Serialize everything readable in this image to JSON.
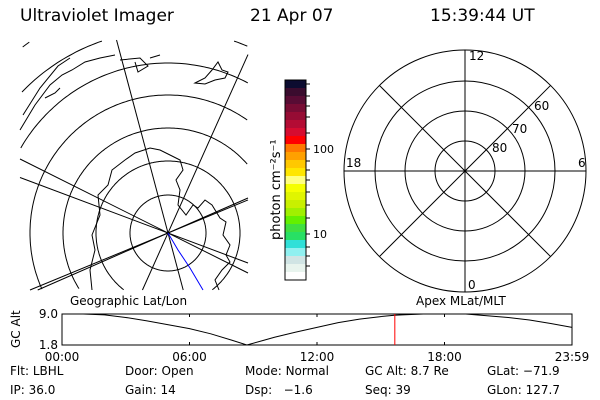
{
  "header": {
    "instrument": "Ultraviolet Imager",
    "date": "21 Apr 07",
    "time": "15:39:44 UT"
  },
  "colorbar": {
    "label": "photon cm⁻²s⁻¹",
    "ticks": [
      "100",
      "10"
    ],
    "colors": [
      "#0c0c30",
      "#3a0c2e",
      "#580c34",
      "#780c34",
      "#960c34",
      "#b40c34",
      "#d60c30",
      "#ff0000",
      "#ff7800",
      "#ffa000",
      "#ffc800",
      "#ffe600",
      "#ffff80",
      "#f5ff00",
      "#e0f500",
      "#c8f000",
      "#a0f000",
      "#64f000",
      "#40e040",
      "#28e064",
      "#30e0d8",
      "#90f0f0",
      "#d0e4e4",
      "#e8f4ee",
      "#ffffff"
    ]
  },
  "polar": {
    "mlt_labels": [
      "12",
      "6",
      "0",
      "18"
    ],
    "lat_labels": [
      "80",
      "70",
      "60"
    ]
  },
  "map_colors": {
    "grid": "#000000",
    "track": "#0000ff",
    "marker": "#ff0000"
  },
  "panel_labels": {
    "left": "Geographic Lat/Lon",
    "right": "Apex MLat/MLT"
  },
  "chart_data": {
    "type": "line",
    "ylabel": "GC Alt",
    "ytick_labels": [
      "9.0",
      "1.8"
    ],
    "ylim": [
      1.8,
      9.0
    ],
    "xtick_labels": [
      "00:00",
      "06:00",
      "12:00",
      "18:00",
      "23:59"
    ],
    "xlim": [
      0,
      24
    ],
    "x": [
      0,
      1,
      2,
      3,
      4,
      5,
      6,
      7,
      8,
      8.7,
      9.5,
      10,
      11,
      12,
      13,
      14,
      15,
      15.65,
      16,
      17,
      18,
      19,
      20,
      21,
      22,
      23,
      24
    ],
    "y": [
      9.0,
      9.0,
      8.8,
      8.2,
      7.4,
      6.5,
      5.6,
      4.4,
      2.9,
      1.8,
      2.9,
      3.6,
      4.8,
      5.9,
      7.0,
      7.8,
      8.4,
      8.7,
      8.8,
      9.0,
      9.0,
      9.0,
      8.6,
      8.2,
      7.6,
      6.8,
      5.9
    ],
    "current_time_marker": "15:39:44"
  },
  "info": [
    {
      "label": "Flt:",
      "value": "LBHL"
    },
    {
      "label": "Door:",
      "value": "Open"
    },
    {
      "label": "Mode:",
      "value": "Normal"
    },
    {
      "label": "GC Alt:",
      "value": "8.7 Re"
    },
    {
      "label": "GLat:",
      "value": "−71.9"
    },
    {
      "label": "IP:",
      "value": "36.0"
    },
    {
      "label": "Gain:",
      "value": "14"
    },
    {
      "label": "Dsp:",
      "value": "  −1.6"
    },
    {
      "label": "Seq:",
      "value": "39"
    },
    {
      "label": "GLon:",
      "value": "127.7"
    }
  ]
}
